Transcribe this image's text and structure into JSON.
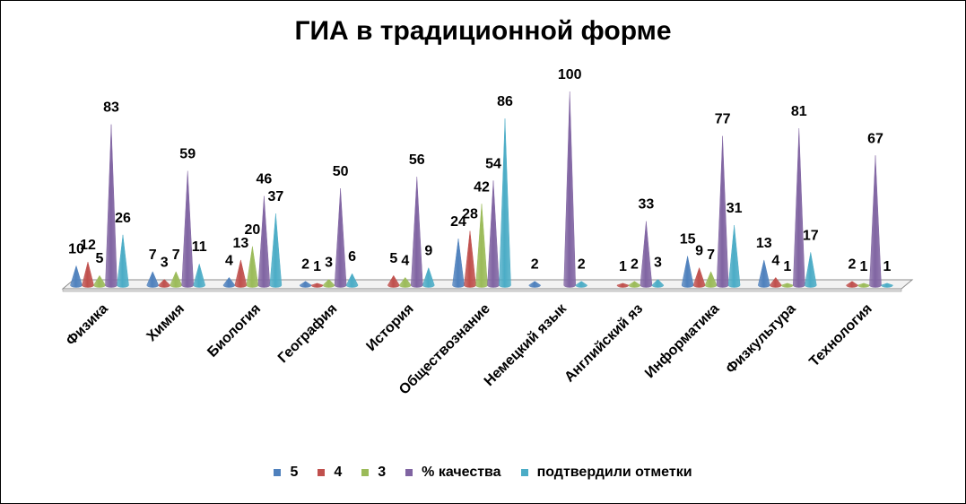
{
  "chart_data": {
    "type": "bar",
    "title": "ГИА в традиционной форме",
    "categories": [
      "Физика",
      "Химия",
      "Биология",
      "География",
      "История",
      "Обществознание",
      "Немецкий язык",
      "Английский яз",
      "Информатика",
      "Физкультура",
      "Технология"
    ],
    "series": [
      {
        "name": "5",
        "color": "#4F81BD",
        "values": [
          10,
          7,
          4,
          2,
          null,
          24,
          2,
          null,
          15,
          13,
          null
        ]
      },
      {
        "name": "4",
        "color": "#C0504D",
        "values": [
          12,
          3,
          13,
          1,
          5,
          28,
          null,
          1,
          9,
          4,
          2
        ]
      },
      {
        "name": "3",
        "color": "#9BBB59",
        "values": [
          5,
          7,
          20,
          3,
          4,
          42,
          null,
          2,
          7,
          1,
          1
        ]
      },
      {
        "name": "% качества",
        "color": "#8064A2",
        "values": [
          83,
          59,
          46,
          50,
          56,
          54,
          100,
          33,
          77,
          81,
          67
        ]
      },
      {
        "name": "подтвердили отметки",
        "color": "#4BACC6",
        "values": [
          26,
          11,
          37,
          6,
          9,
          86,
          2,
          3,
          31,
          17,
          1
        ]
      }
    ],
    "ylim": [
      0,
      100
    ],
    "legend": "bottom",
    "grid": false,
    "chart_style": "3d-cone"
  }
}
